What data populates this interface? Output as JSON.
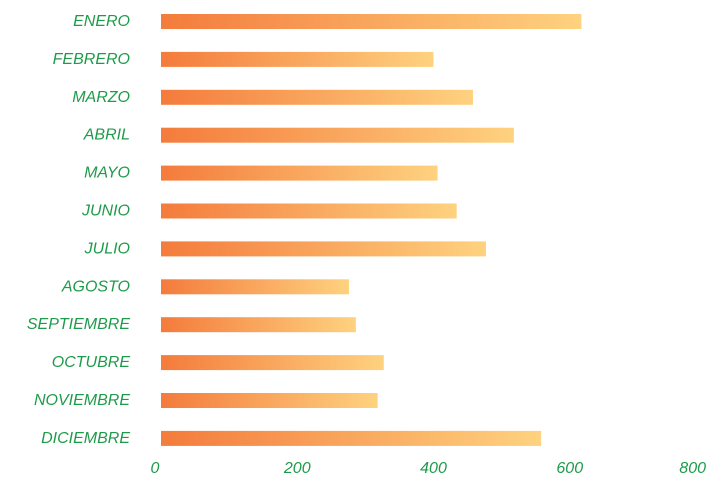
{
  "chart_data": {
    "type": "bar",
    "orientation": "horizontal",
    "title": "",
    "xlabel": "",
    "ylabel": "",
    "categories": [
      "ENERO",
      "FEBRERO",
      "MARZO",
      "ABRIL",
      "MAYO",
      "JUNIO",
      "JULIO",
      "AGOSTO",
      "SEPTIEMBRE",
      "OCTUBRE",
      "NOVIEMBRE",
      "DICIEMBRE"
    ],
    "values": [
      617,
      400,
      458,
      518,
      406,
      434,
      477,
      276,
      286,
      327,
      318,
      558
    ],
    "xlim": [
      0,
      800
    ],
    "xticks": [
      0,
      200,
      400,
      600,
      800
    ],
    "xtick_labels": [
      "0",
      "200",
      "400",
      "600",
      "800"
    ],
    "grid": false,
    "legend": "none",
    "colors": {
      "bar_start": "#f47b3c",
      "bar_end": "#fed27f",
      "label_text": "#1e9b4a"
    }
  }
}
